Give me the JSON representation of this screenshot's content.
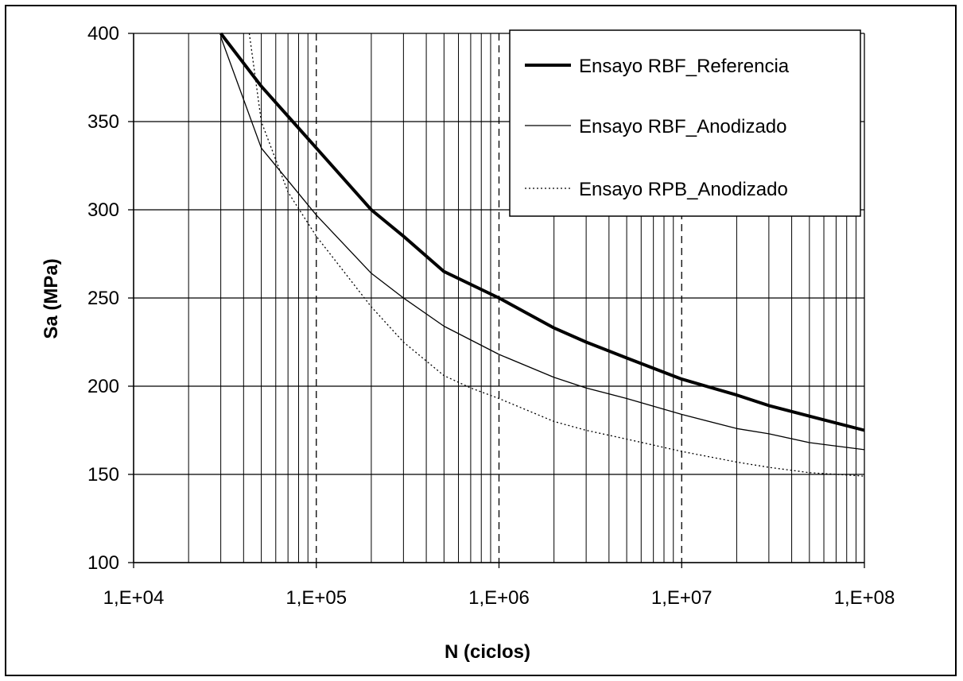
{
  "chart_data": {
    "type": "line",
    "xlabel": "N (ciclos)",
    "ylabel": "Sa (MPa)",
    "x_scale": "log",
    "xlim": [
      10000,
      100000000
    ],
    "ylim": [
      100,
      400
    ],
    "x_ticks": [
      10000,
      100000,
      1000000,
      10000000,
      100000000
    ],
    "x_tick_labels": [
      "1,E+04",
      "1,E+05",
      "1,E+06",
      "1,E+07",
      "1,E+08"
    ],
    "y_ticks": [
      100,
      150,
      200,
      250,
      300,
      350,
      400
    ],
    "y_tick_labels": [
      "100",
      "150",
      "200",
      "250",
      "300",
      "350",
      "400"
    ],
    "grid": true,
    "legend_position": "top-right",
    "series": [
      {
        "name": "Ensayo RBF_Referencia",
        "style": "solid-thick",
        "color": "#000000",
        "x": [
          30000,
          50000,
          100000,
          200000,
          300000,
          500000,
          1000000,
          2000000,
          3000000,
          5000000,
          10000000,
          20000000,
          30000000,
          50000000,
          100000000
        ],
        "y": [
          400,
          370,
          335,
          300,
          285,
          265,
          250,
          233,
          225,
          216,
          204,
          195,
          189,
          183,
          175
        ]
      },
      {
        "name": "Ensayo RBF_Anodizado",
        "style": "solid-thin",
        "color": "#000000",
        "x": [
          30000,
          50000,
          100000,
          200000,
          300000,
          500000,
          1000000,
          2000000,
          3000000,
          5000000,
          10000000,
          20000000,
          30000000,
          50000000,
          100000000
        ],
        "y": [
          398,
          335,
          297,
          264,
          250,
          234,
          218,
          205,
          199,
          193,
          184,
          176,
          173,
          168,
          164
        ]
      },
      {
        "name": "Ensayo RPB_Anodizado",
        "style": "dotted",
        "color": "#000000",
        "x": [
          43000,
          50000,
          70000,
          100000,
          200000,
          300000,
          500000,
          700000,
          1000000,
          2000000,
          3000000,
          5000000,
          10000000,
          20000000,
          30000000,
          50000000,
          100000000
        ],
        "y": [
          400,
          350,
          310,
          285,
          245,
          225,
          206,
          199,
          193,
          180,
          175,
          170,
          163,
          157,
          154,
          151,
          149
        ]
      }
    ]
  }
}
